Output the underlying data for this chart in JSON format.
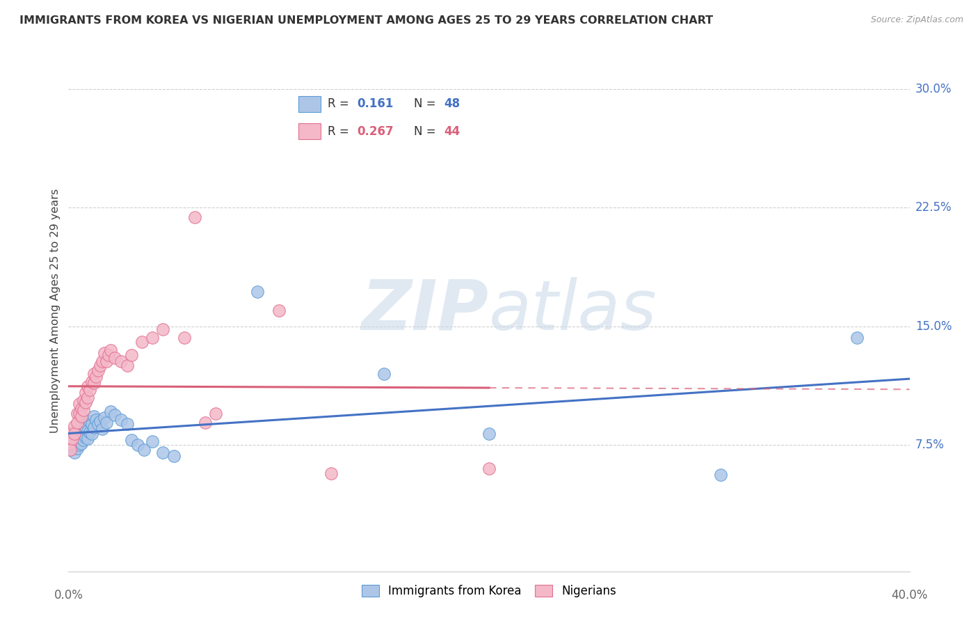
{
  "title": "IMMIGRANTS FROM KOREA VS NIGERIAN UNEMPLOYMENT AMONG AGES 25 TO 29 YEARS CORRELATION CHART",
  "source": "Source: ZipAtlas.com",
  "ylabel": "Unemployment Among Ages 25 to 29 years",
  "ytick_labels": [
    "7.5%",
    "15.0%",
    "22.5%",
    "30.0%"
  ],
  "ytick_vals": [
    0.075,
    0.15,
    0.225,
    0.3
  ],
  "xlim": [
    0.0,
    0.4
  ],
  "ylim": [
    -0.005,
    0.325
  ],
  "korea_R": "0.161",
  "korea_N": "48",
  "nigeria_R": "0.267",
  "nigeria_N": "44",
  "korea_scatter_color": "#adc6e8",
  "korea_scatter_edge": "#5b9bd5",
  "nigeria_scatter_color": "#f4b8c8",
  "nigeria_scatter_edge": "#e07090",
  "korea_line_color": "#4472c4",
  "nigeria_line_color": "#d9607a",
  "nigeria_dash_color": "#e0909a",
  "background_color": "#ffffff",
  "grid_color": "#d0d0d0",
  "watermark_color": "#c8d8e8",
  "watermark_alpha": 0.55,
  "korea_x": [
    0.001,
    0.001,
    0.002,
    0.002,
    0.003,
    0.003,
    0.004,
    0.004,
    0.004,
    0.005,
    0.005,
    0.005,
    0.006,
    0.006,
    0.007,
    0.007,
    0.007,
    0.008,
    0.008,
    0.009,
    0.009,
    0.01,
    0.01,
    0.011,
    0.011,
    0.012,
    0.012,
    0.013,
    0.014,
    0.015,
    0.016,
    0.017,
    0.018,
    0.02,
    0.022,
    0.025,
    0.028,
    0.03,
    0.033,
    0.036,
    0.04,
    0.045,
    0.05,
    0.09,
    0.15,
    0.2,
    0.31,
    0.375
  ],
  "korea_y": [
    0.076,
    0.072,
    0.08,
    0.074,
    0.078,
    0.07,
    0.082,
    0.077,
    0.073,
    0.085,
    0.079,
    0.075,
    0.083,
    0.076,
    0.088,
    0.082,
    0.078,
    0.086,
    0.08,
    0.084,
    0.079,
    0.09,
    0.083,
    0.088,
    0.082,
    0.093,
    0.086,
    0.091,
    0.088,
    0.09,
    0.085,
    0.092,
    0.089,
    0.096,
    0.094,
    0.091,
    0.088,
    0.078,
    0.075,
    0.072,
    0.077,
    0.07,
    0.068,
    0.172,
    0.12,
    0.082,
    0.056,
    0.143
  ],
  "nigeria_x": [
    0.001,
    0.001,
    0.002,
    0.002,
    0.003,
    0.003,
    0.004,
    0.004,
    0.005,
    0.005,
    0.006,
    0.006,
    0.007,
    0.007,
    0.008,
    0.008,
    0.009,
    0.009,
    0.01,
    0.011,
    0.012,
    0.012,
    0.013,
    0.014,
    0.015,
    0.016,
    0.017,
    0.018,
    0.019,
    0.02,
    0.022,
    0.025,
    0.028,
    0.03,
    0.035,
    0.04,
    0.045,
    0.055,
    0.06,
    0.065,
    0.07,
    0.1,
    0.125,
    0.2
  ],
  "nigeria_y": [
    0.076,
    0.072,
    0.083,
    0.079,
    0.087,
    0.082,
    0.095,
    0.089,
    0.101,
    0.095,
    0.098,
    0.093,
    0.103,
    0.097,
    0.108,
    0.102,
    0.112,
    0.105,
    0.11,
    0.115,
    0.12,
    0.114,
    0.118,
    0.122,
    0.125,
    0.128,
    0.133,
    0.128,
    0.132,
    0.135,
    0.13,
    0.128,
    0.125,
    0.132,
    0.14,
    0.143,
    0.148,
    0.143,
    0.219,
    0.089,
    0.095,
    0.16,
    0.057,
    0.06
  ]
}
